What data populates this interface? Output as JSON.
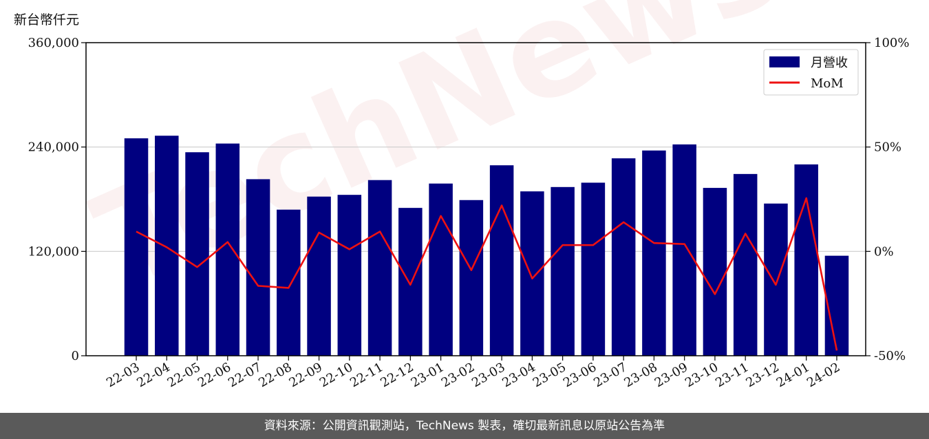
{
  "chart_data": {
    "type": "bar",
    "ylabel": "新台幣仟元",
    "categories": [
      "22-03",
      "22-04",
      "22-05",
      "22-06",
      "22-07",
      "22-08",
      "22-09",
      "22-10",
      "22-11",
      "22-12",
      "23-01",
      "23-02",
      "23-03",
      "23-04",
      "23-05",
      "23-06",
      "23-07",
      "23-08",
      "23-09",
      "23-10",
      "23-11",
      "23-12",
      "24-01",
      "24-02"
    ],
    "series": [
      {
        "name": "月營收",
        "type": "bar",
        "axis": "left",
        "color": "#000080",
        "values": [
          250000,
          253000,
          234000,
          244000,
          203000,
          168000,
          183000,
          185000,
          202000,
          170000,
          198000,
          179000,
          219000,
          189000,
          194000,
          199000,
          227000,
          236000,
          243000,
          193000,
          209000,
          175000,
          220000,
          115000
        ]
      },
      {
        "name": "MoM",
        "type": "line",
        "axis": "right",
        "color": "#ee1111",
        "values": [
          9.5,
          2.0,
          -7.5,
          4.5,
          -16.5,
          -17.5,
          9.0,
          1.0,
          9.5,
          -16.0,
          17.0,
          -9.0,
          22.0,
          -13.0,
          3.0,
          3.0,
          14.0,
          4.0,
          3.5,
          -20.5,
          8.5,
          -16.0,
          25.5,
          -47.5
        ]
      }
    ],
    "ylim": [
      0,
      360000
    ],
    "yticks": [
      "0",
      "120,000",
      "240,000",
      "360,000"
    ],
    "ytick_values": [
      0,
      120000,
      240000,
      360000
    ],
    "y2lim": [
      -50,
      100
    ],
    "y2ticks": [
      "-50%",
      "0%",
      "50%",
      "100%"
    ],
    "y2tick_values": [
      -50,
      0,
      50,
      100
    ],
    "grid": true,
    "legend_position": "top-right",
    "watermark": "TechNews"
  },
  "footer": {
    "text": "資料來源：公開資訊觀測站，TechNews 製表，確切最新訊息以原站公告為準"
  }
}
